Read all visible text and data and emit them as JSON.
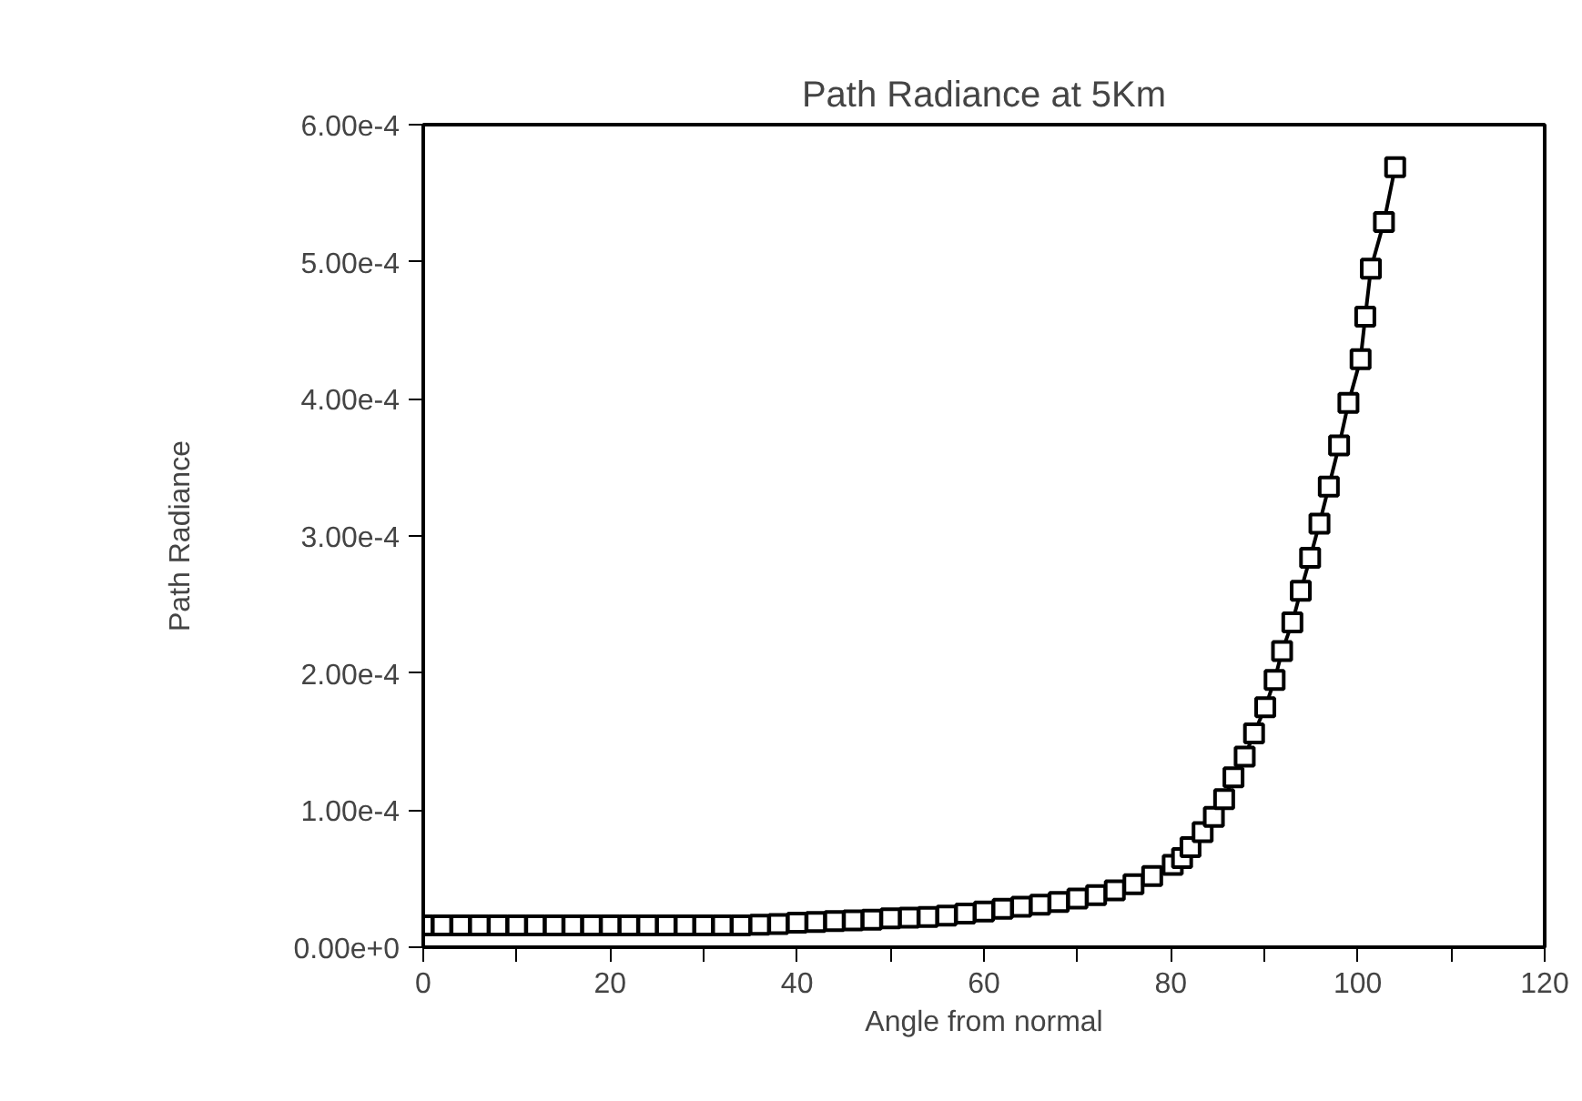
{
  "chart_data": {
    "type": "line",
    "title": "Path Radiance at 5Km",
    "xlabel": "Angle from normal",
    "ylabel": "Path Radiance",
    "x": [
      0,
      2,
      4,
      6,
      8,
      10,
      12,
      14,
      16,
      18,
      20,
      22,
      24,
      26,
      28,
      30,
      32,
      34,
      36,
      38,
      40,
      42,
      44,
      46,
      48,
      50,
      52,
      54,
      56,
      58,
      60,
      62,
      64,
      66,
      68,
      70,
      72,
      74,
      76,
      78,
      80.2,
      81.2,
      82.1,
      83.4,
      84.6,
      85.7,
      86.7,
      87.9,
      88.9,
      90.1,
      91.1,
      91.9,
      93.0,
      93.9,
      94.9,
      95.9,
      96.9,
      98.0,
      99.0,
      100.3,
      100.8,
      101.4,
      102.8,
      104.0
    ],
    "series": [
      {
        "color": "#000000",
        "values": [
          1.6e-05,
          1.6e-05,
          1.6e-05,
          1.6e-05,
          1.6e-05,
          1.6e-05,
          1.6e-05,
          1.6e-05,
          1.6e-05,
          1.6e-05,
          1.6e-05,
          1.6e-05,
          1.6e-05,
          1.6e-05,
          1.6e-05,
          1.6e-05,
          1.6e-05,
          1.6e-05,
          1.65e-05,
          1.7e-05,
          1.8e-05,
          1.85e-05,
          1.9e-05,
          1.95e-05,
          2e-05,
          2.1e-05,
          2.15e-05,
          2.2e-05,
          2.3e-05,
          2.45e-05,
          2.6e-05,
          2.8e-05,
          2.95e-05,
          3.1e-05,
          3.3e-05,
          3.55e-05,
          3.8e-05,
          4.15e-05,
          4.6e-05,
          5.2e-05,
          6e-05,
          6.5e-05,
          7.3e-05,
          8.4e-05,
          9.5e-05,
          0.000108,
          0.000124,
          0.000139,
          0.000156,
          0.000175,
          0.000195,
          0.000216,
          0.000237,
          0.00026,
          0.000284,
          0.000309,
          0.000336,
          0.000366,
          0.000397,
          0.000429,
          0.00046,
          0.000495,
          0.000529,
          0.000569
        ]
      }
    ],
    "marker": "square",
    "line_style": "solid",
    "grid": false,
    "xlim": [
      0,
      120
    ],
    "ylim": [
      0,
      0.0006
    ],
    "xticks": [
      0,
      {
        "value": 10,
        "label": null
      },
      20,
      {
        "value": 30,
        "label": null
      },
      40,
      {
        "value": 50,
        "label": null
      },
      60,
      {
        "value": 70,
        "label": null
      },
      80,
      {
        "value": 90,
        "label": null
      },
      100,
      {
        "value": 110,
        "label": null
      },
      120
    ],
    "yticks": [
      {
        "value": 0,
        "label": "0.00e+0"
      },
      {
        "value": 0.0001,
        "label": "1.00e-4"
      },
      {
        "value": 0.0002,
        "label": "2.00e-4"
      },
      {
        "value": 0.0003,
        "label": "3.00e-4"
      },
      {
        "value": 0.0004,
        "label": "4.00e-4"
      },
      {
        "value": 0.0005,
        "label": "5.00e-4"
      },
      {
        "value": 0.0006,
        "label": "6.00e-4"
      }
    ]
  }
}
